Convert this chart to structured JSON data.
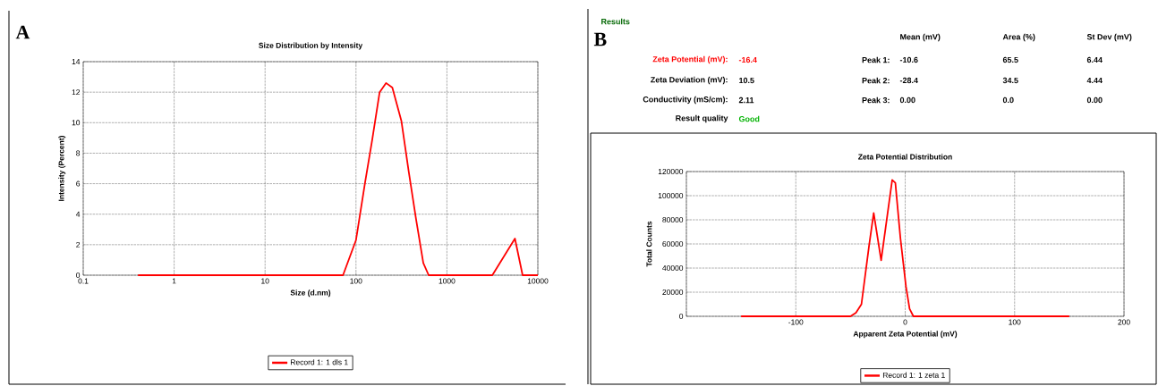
{
  "chart_data": [
    {
      "type": "line",
      "title": "Size Distribution by Intensity",
      "xlabel": "Size (d.nm)",
      "ylabel": "Intensity (Percent)",
      "log": "x",
      "grid": true,
      "legend": "bottom",
      "marker": "none",
      "line_style": "solid",
      "xlim": [
        0.1,
        10000
      ],
      "xticks": [
        0.1,
        1,
        10,
        100,
        1000,
        10000
      ],
      "ylim": [
        0,
        14
      ],
      "yticks": [
        0,
        2,
        4,
        6,
        8,
        10,
        12,
        14
      ],
      "annotations": [
        "A"
      ],
      "series": [
        {
          "name": "Record 1: 1 dls 1",
          "color": "#ff0000",
          "x": [
            0.4,
            65,
            72,
            100,
            126,
            151,
            182,
            214,
            251,
            316,
            380,
            457,
            550,
            630,
            3160,
            5600,
            6800,
            10000
          ],
          "values": [
            0,
            0,
            0,
            2.3,
            6.1,
            8.9,
            12.0,
            12.6,
            12.3,
            10.1,
            6.8,
            3.7,
            0.8,
            0,
            0,
            2.4,
            0,
            0
          ]
        }
      ]
    },
    {
      "type": "other",
      "title": "Results",
      "annotations": [
        "B",
        "Zeta Potential (mV):",
        "-16.4",
        "Zeta Deviation (mV):",
        "10.5",
        "Conductivity (mS/cm):",
        "2.11",
        "Result quality",
        "Good",
        "Mean (mV)",
        "Area (%)",
        "St Dev (mV)",
        "Peak 1:",
        "-10.6",
        "65.5",
        "6.44",
        "Peak 2:",
        "-28.4",
        "34.5",
        "4.44",
        "Peak 3:",
        "0.00",
        "0.0",
        "0.00"
      ]
    },
    {
      "type": "line",
      "title": "Zeta Potential Distribution",
      "xlabel": "Apparent Zeta Potential (mV)",
      "ylabel": "Total Counts",
      "grid": true,
      "legend": "bottom",
      "marker": "none",
      "line_style": "solid",
      "xlim": [
        -200,
        200
      ],
      "xticks": [
        {
          "value": -200,
          "label": null
        },
        -100,
        0,
        100,
        200
      ],
      "ylim": [
        0,
        120000
      ],
      "yticks": [
        0,
        20000,
        40000,
        60000,
        80000,
        100000,
        120000
      ],
      "series": [
        {
          "name": "Record 1: 1 zeta 1",
          "color": "#ff0000",
          "x": [
            -150,
            -50,
            -45,
            -40,
            -33,
            -28.8,
            -22,
            -11.9,
            -9,
            -4.4,
            0.7,
            4,
            7.5,
            150
          ],
          "values": [
            0,
            0,
            3000,
            10000,
            58800,
            85700,
            46400,
            113000,
            110700,
            65000,
            24700,
            6200,
            0,
            0
          ]
        }
      ]
    }
  ]
}
